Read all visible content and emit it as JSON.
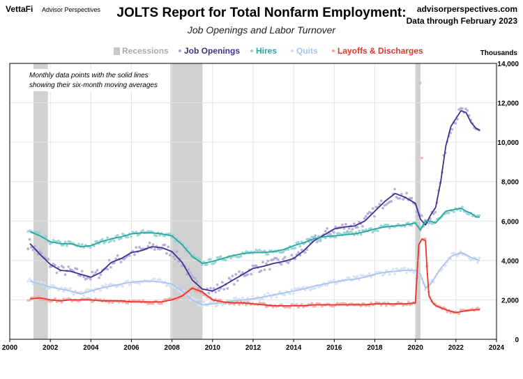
{
  "header": {
    "brand": "VettaFi",
    "brand_sub": "Advisor Perspectives",
    "website": "advisorperspectives.com",
    "data_through": "Data through February 2023"
  },
  "chart_data": {
    "type": "line",
    "title": "JOLTS Report for Total Nonfarm Employment:",
    "subtitle": "Job Openings and Labor Turnover",
    "unit_label": "Thousands",
    "annotation": [
      "Monthly data points with the solid lines",
      "showing their six-month moving averages"
    ],
    "xlim": [
      2000,
      2024
    ],
    "ylim": [
      0,
      14000
    ],
    "x_ticks": [
      2000,
      2002,
      2004,
      2006,
      2008,
      2010,
      2012,
      2014,
      2016,
      2018,
      2020,
      2022,
      2024
    ],
    "y_ticks": [
      0,
      2000,
      4000,
      6000,
      8000,
      10000,
      12000,
      14000
    ],
    "y_tick_labels": [
      "0",
      "2,000",
      "4,000",
      "6,000",
      "8,000",
      "10,000",
      "12,000",
      "14,000"
    ],
    "grid": true,
    "legend_position": "top",
    "recessions": [
      [
        2001.17,
        2001.88
      ],
      [
        2007.92,
        2009.5
      ],
      [
        2020.0,
        2020.25
      ]
    ],
    "legend": [
      {
        "label": "Recessions",
        "color": "#c8c8c8"
      },
      {
        "label": "Job Openings",
        "color": "#3f2f8f"
      },
      {
        "label": "Hires",
        "color": "#2aa4a0"
      },
      {
        "label": "Quits",
        "color": "#a9c4ec"
      },
      {
        "label": "Layoffs & Discharges",
        "color": "#e8342c"
      }
    ],
    "series": [
      {
        "name": "Job Openings",
        "color": "#3f2f8f",
        "x": [
          2001.0,
          2001.5,
          2002.0,
          2002.5,
          2003.0,
          2003.5,
          2004.0,
          2004.5,
          2005.0,
          2005.5,
          2006.0,
          2006.5,
          2007.0,
          2007.5,
          2008.0,
          2008.5,
          2009.0,
          2009.5,
          2010.0,
          2010.5,
          2011.0,
          2011.5,
          2012.0,
          2012.5,
          2013.0,
          2013.5,
          2014.0,
          2014.5,
          2015.0,
          2015.5,
          2016.0,
          2016.5,
          2017.0,
          2017.5,
          2018.0,
          2018.5,
          2019.0,
          2019.5,
          2020.0,
          2020.25,
          2020.5,
          2020.75,
          2021.0,
          2021.25,
          2021.5,
          2021.75,
          2022.0,
          2022.25,
          2022.5,
          2022.75,
          2023.0,
          2023.17
        ],
        "y": [
          4850,
          4300,
          3800,
          3500,
          3450,
          3300,
          3150,
          3400,
          3900,
          4100,
          4400,
          4500,
          4700,
          4650,
          4450,
          3900,
          3000,
          2550,
          2450,
          2700,
          3000,
          3300,
          3600,
          3700,
          3850,
          3950,
          4100,
          4500,
          5000,
          5300,
          5600,
          5700,
          5750,
          6000,
          6500,
          7000,
          7400,
          7200,
          6900,
          6100,
          5800,
          6300,
          6700,
          8000,
          9800,
          10800,
          11200,
          11600,
          11500,
          11000,
          10700,
          10600
        ]
      },
      {
        "name": "Hires",
        "color": "#2aa4a0",
        "x": [
          2001.0,
          2001.5,
          2002.0,
          2002.5,
          2003.0,
          2003.5,
          2004.0,
          2004.5,
          2005.0,
          2005.5,
          2006.0,
          2006.5,
          2007.0,
          2007.5,
          2008.0,
          2008.5,
          2009.0,
          2009.5,
          2010.0,
          2010.5,
          2011.0,
          2011.5,
          2012.0,
          2012.5,
          2013.0,
          2013.5,
          2014.0,
          2014.5,
          2015.0,
          2015.5,
          2016.0,
          2016.5,
          2017.0,
          2017.5,
          2018.0,
          2018.5,
          2019.0,
          2019.5,
          2020.0,
          2020.25,
          2020.5,
          2020.75,
          2021.0,
          2021.25,
          2021.5,
          2021.75,
          2022.0,
          2022.25,
          2022.5,
          2022.75,
          2023.0,
          2023.17
        ],
        "y": [
          5450,
          5250,
          4950,
          4850,
          4850,
          4700,
          4750,
          4950,
          5100,
          5200,
          5350,
          5400,
          5400,
          5350,
          5250,
          4800,
          4200,
          3850,
          3950,
          4100,
          4250,
          4350,
          4400,
          4400,
          4450,
          4550,
          4750,
          4900,
          5100,
          5200,
          5250,
          5300,
          5350,
          5450,
          5600,
          5700,
          5750,
          5800,
          5900,
          5550,
          6000,
          6000,
          5900,
          6200,
          6500,
          6550,
          6600,
          6650,
          6500,
          6400,
          6200,
          6200
        ]
      },
      {
        "name": "Quits",
        "color": "#a9c4ec",
        "x": [
          2001.0,
          2001.5,
          2002.0,
          2002.5,
          2003.0,
          2003.5,
          2004.0,
          2004.5,
          2005.0,
          2005.5,
          2006.0,
          2006.5,
          2007.0,
          2007.5,
          2008.0,
          2008.5,
          2009.0,
          2009.5,
          2010.0,
          2010.5,
          2011.0,
          2011.5,
          2012.0,
          2012.5,
          2013.0,
          2013.5,
          2014.0,
          2014.5,
          2015.0,
          2015.5,
          2016.0,
          2016.5,
          2017.0,
          2017.5,
          2018.0,
          2018.5,
          2019.0,
          2019.5,
          2020.0,
          2020.25,
          2020.5,
          2020.75,
          2021.0,
          2021.25,
          2021.5,
          2021.75,
          2022.0,
          2022.25,
          2022.5,
          2022.75,
          2023.0,
          2023.17
        ],
        "y": [
          2950,
          2800,
          2650,
          2550,
          2450,
          2300,
          2450,
          2600,
          2700,
          2800,
          2900,
          2950,
          2950,
          2900,
          2800,
          2450,
          2000,
          1750,
          1800,
          1850,
          1950,
          2000,
          2050,
          2150,
          2250,
          2350,
          2450,
          2550,
          2700,
          2800,
          2900,
          3000,
          3050,
          3150,
          3300,
          3400,
          3450,
          3500,
          3500,
          3300,
          2600,
          2800,
          3200,
          3600,
          3900,
          4200,
          4300,
          4400,
          4300,
          4150,
          4050,
          4000
        ]
      },
      {
        "name": "Layoffs & Discharges",
        "color": "#e8342c",
        "x": [
          2001.0,
          2001.5,
          2002.0,
          2002.5,
          2003.0,
          2003.5,
          2004.0,
          2004.5,
          2005.0,
          2005.5,
          2006.0,
          2006.5,
          2007.0,
          2007.5,
          2008.0,
          2008.5,
          2009.0,
          2009.5,
          2010.0,
          2010.5,
          2011.0,
          2011.5,
          2012.0,
          2012.5,
          2013.0,
          2013.5,
          2014.0,
          2014.5,
          2015.0,
          2015.5,
          2016.0,
          2016.5,
          2017.0,
          2017.5,
          2018.0,
          2018.5,
          2019.0,
          2019.5,
          2020.0,
          2020.17,
          2020.33,
          2020.5,
          2020.58,
          2020.67,
          2020.83,
          2021.0,
          2021.5,
          2022.0,
          2022.5,
          2023.0,
          2023.17
        ],
        "y": [
          2050,
          2100,
          2000,
          1950,
          2000,
          2000,
          2000,
          1950,
          1950,
          1950,
          1900,
          1900,
          1900,
          1900,
          2000,
          2200,
          2600,
          2400,
          2000,
          1900,
          1850,
          1850,
          1800,
          1750,
          1700,
          1700,
          1700,
          1700,
          1750,
          1750,
          1750,
          1750,
          1750,
          1750,
          1800,
          1800,
          1800,
          1800,
          1850,
          4800,
          5100,
          5000,
          3500,
          2200,
          1900,
          1700,
          1500,
          1350,
          1450,
          1500,
          1500
        ]
      }
    ]
  }
}
